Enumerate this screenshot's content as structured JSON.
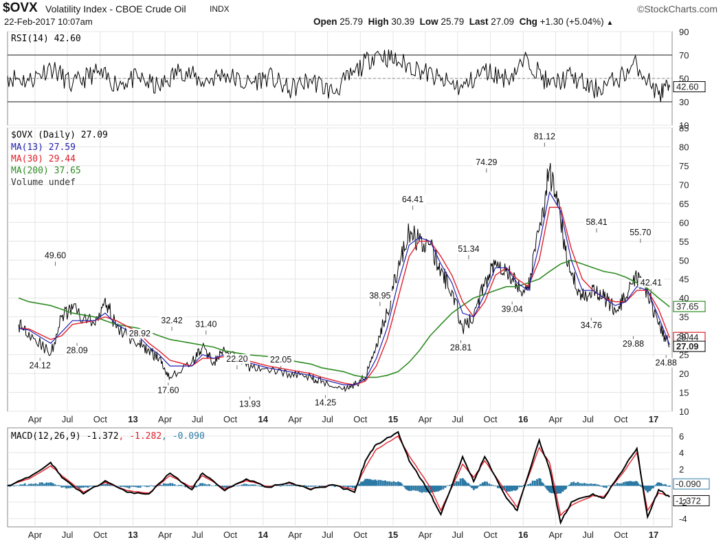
{
  "header": {
    "symbol": "$OVX",
    "name": "Volatility Index - CBOE Crude Oil",
    "exchange": "INDX",
    "source": "©StockCharts.com",
    "datetime": "22-Feb-2017 10:07am",
    "open_label": "Open",
    "open": "25.79",
    "high_label": "High",
    "high": "30.39",
    "low_label": "Low",
    "low": "25.79",
    "last_label": "Last",
    "last": "27.09",
    "chg_label": "Chg",
    "chg": "+1.30 (+5.04%)",
    "chg_arrow": "▲"
  },
  "colors": {
    "price": "#000000",
    "ma13": "#1f1fb0",
    "ma30": "#e0202a",
    "ma200": "#2e8b22",
    "macd": "#000000",
    "signal": "#e0202a",
    "hist": "#2b79a4",
    "frame": "#8a8a8a",
    "grid": "#e4e4e4"
  },
  "chart_data": [
    {
      "id": "rsi",
      "type": "line",
      "legend": "RSI(14) 42.60",
      "last_tag": "42.60",
      "ylim": [
        10,
        90
      ],
      "yticks": [
        "90",
        "70",
        "50",
        "30",
        "10"
      ],
      "ref_lines": [
        30,
        70
      ],
      "x": [
        "2012-01",
        "2012-03",
        "2012-05",
        "2012-07",
        "2012-09",
        "2012-11",
        "2013-01",
        "2013-03",
        "2013-05",
        "2013-07",
        "2013-09",
        "2013-11",
        "2014-01",
        "2014-03",
        "2014-05",
        "2014-07",
        "2014-09",
        "2014-11",
        "2015-01",
        "2015-03",
        "2015-05",
        "2015-07",
        "2015-09",
        "2015-11",
        "2016-01",
        "2016-03",
        "2016-05",
        "2016-07",
        "2016-09",
        "2016-11",
        "2017-01",
        "2017-02"
      ],
      "values": [
        52,
        48,
        60,
        44,
        55,
        46,
        50,
        42,
        58,
        47,
        54,
        45,
        52,
        40,
        49,
        38,
        55,
        72,
        64,
        58,
        48,
        42,
        57,
        50,
        66,
        44,
        52,
        40,
        48,
        62,
        36,
        42.6
      ]
    },
    {
      "id": "price",
      "type": "line",
      "legend": {
        "price": "$OVX (Daily) 27.09",
        "ma13": "MA(13) 27.59",
        "ma30": "MA(30) 29.44",
        "ma200": "MA(200) 37.65",
        "volume": "Volume undef"
      },
      "ylim": [
        10,
        85
      ],
      "yticks": [
        "85",
        "80",
        "75",
        "70",
        "65",
        "60",
        "55",
        "50",
        "45",
        "40",
        "35",
        "30",
        "25",
        "20",
        "15",
        "10"
      ],
      "x_ticks": [
        "Apr",
        "Jul",
        "Oct",
        "13",
        "Apr",
        "Jul",
        "Oct",
        "14",
        "Apr",
        "Jul",
        "Oct",
        "15",
        "Apr",
        "Jul",
        "Oct",
        "16",
        "Apr",
        "Jul",
        "Oct",
        "17"
      ],
      "x": [
        "2012-02",
        "2012-03",
        "2012-05",
        "2012-06",
        "2012-07",
        "2012-09",
        "2012-10",
        "2012-11",
        "2013-01",
        "2013-02",
        "2013-03",
        "2013-04",
        "2013-06",
        "2013-07",
        "2013-08",
        "2013-09",
        "2013-11",
        "2014-01",
        "2014-03",
        "2014-05",
        "2014-06",
        "2014-08",
        "2014-09",
        "2014-10",
        "2014-11",
        "2014-12",
        "2015-01",
        "2015-02",
        "2015-03",
        "2015-04",
        "2015-05",
        "2015-06",
        "2015-07",
        "2015-08",
        "2015-09",
        "2015-10",
        "2015-11",
        "2015-12",
        "2016-01",
        "2016-02",
        "2016-03",
        "2016-04",
        "2016-05",
        "2016-06",
        "2016-07",
        "2016-08",
        "2016-09",
        "2016-10",
        "2016-11",
        "2016-12",
        "2017-01",
        "2017-02"
      ],
      "values": [
        33,
        31,
        25,
        35,
        37,
        33,
        40,
        32,
        28,
        26,
        24,
        19,
        23,
        27,
        23,
        26,
        22,
        21,
        20,
        19,
        18,
        16,
        17,
        19,
        28,
        36,
        48,
        57,
        55,
        54,
        47,
        42,
        32,
        35,
        44,
        50,
        48,
        43,
        42,
        58,
        74,
        60,
        46,
        40,
        43,
        40,
        37,
        40,
        45,
        42,
        33,
        27.09
      ],
      "ma13": [
        32,
        31.5,
        28,
        31,
        34,
        34,
        36,
        33,
        30,
        27,
        25,
        22,
        22,
        25,
        24,
        25,
        23,
        21.5,
        20.5,
        19.5,
        18.5,
        17,
        17,
        18.5,
        24,
        32,
        44,
        54,
        56,
        55,
        49,
        44,
        36,
        35,
        41,
        48,
        48,
        44,
        42,
        54,
        68,
        63,
        50,
        42,
        42,
        40,
        38,
        39,
        43,
        42,
        35,
        27.59
      ],
      "ma30": [
        32,
        31.8,
        29,
        30,
        33,
        34,
        35,
        34,
        31,
        28,
        26,
        23.5,
        22,
        24,
        24,
        24.5,
        23.5,
        22,
        21,
        20,
        19,
        17.5,
        17,
        18,
        22,
        29,
        40,
        51,
        55,
        55,
        51,
        46,
        39,
        35,
        39,
        46,
        48,
        45,
        43,
        50,
        64,
        64,
        53,
        45,
        42,
        40,
        39,
        39,
        42,
        42,
        37,
        29.44
      ],
      "ma200": [
        40,
        39,
        38,
        37,
        36,
        35,
        34,
        33,
        32,
        31,
        30,
        29,
        28,
        27.5,
        27,
        26,
        25,
        24.5,
        23.5,
        22.5,
        21.5,
        20.5,
        19.5,
        19,
        19,
        19.5,
        20.5,
        23,
        26,
        30,
        33,
        36,
        38,
        40,
        41,
        42,
        43,
        43,
        44,
        45,
        47,
        49,
        50,
        49,
        48,
        47,
        46.5,
        45.5,
        44,
        42.5,
        40,
        37.65
      ],
      "annotations": [
        {
          "label": "49.60",
          "date": "2012-05-28",
          "value": 49.6
        },
        {
          "label": "24.12",
          "date": "2012-04-15",
          "value": 24.12
        },
        {
          "label": "28.09",
          "date": "2012-07-28",
          "value": 28.09
        },
        {
          "label": "28.92",
          "date": "2013-01-20",
          "value": 28.92
        },
        {
          "label": "32.42",
          "date": "2013-04-20",
          "value": 32.42
        },
        {
          "label": "17.60",
          "date": "2013-04-10",
          "value": 17.6
        },
        {
          "label": "31.40",
          "date": "2013-07-25",
          "value": 31.4
        },
        {
          "label": "22.20",
          "date": "2013-10-20",
          "value": 22.2
        },
        {
          "label": "13.93",
          "date": "2013-11-25",
          "value": 13.93
        },
        {
          "label": "22.05",
          "date": "2014-02-20",
          "value": 22.05
        },
        {
          "label": "14.25",
          "date": "2014-06-25",
          "value": 14.25
        },
        {
          "label": "38.95",
          "date": "2014-11-25",
          "value": 38.95
        },
        {
          "label": "64.41",
          "date": "2015-02-25",
          "value": 64.41
        },
        {
          "label": "51.34",
          "date": "2015-08-01",
          "value": 51.34
        },
        {
          "label": "28.81",
          "date": "2015-07-10",
          "value": 28.81
        },
        {
          "label": "74.29",
          "date": "2015-09-20",
          "value": 74.29
        },
        {
          "label": "39.04",
          "date": "2015-12-01",
          "value": 39.04
        },
        {
          "label": "81.12",
          "date": "2016-03-01",
          "value": 81.12
        },
        {
          "label": "58.41",
          "date": "2016-07-25",
          "value": 58.41
        },
        {
          "label": "34.76",
          "date": "2016-07-10",
          "value": 34.76
        },
        {
          "label": "55.70",
          "date": "2016-11-25",
          "value": 55.7
        },
        {
          "label": "42.41",
          "date": "2016-12-25",
          "value": 42.41
        },
        {
          "label": "29.88",
          "date": "2016-11-05",
          "value": 29.88
        },
        {
          "label": "24.88",
          "date": "2017-02-05",
          "value": 24.88
        }
      ],
      "right_tags": [
        {
          "label": "37.65",
          "value": 37.65
        },
        {
          "label": "29.44",
          "value": 29.44
        },
        {
          "label": "27.09",
          "value": 27.09
        }
      ]
    },
    {
      "id": "macd",
      "type": "line",
      "legend": {
        "name": "MACD(12,26,9)",
        "macd": "-1.372",
        "signal": "-1.282",
        "hist": "-0.090"
      },
      "ylim": [
        -5,
        7
      ],
      "yticks": [
        "6",
        "4",
        "2",
        "-2",
        "-4"
      ],
      "x_ticks": [
        "Apr",
        "Jul",
        "Oct",
        "13",
        "Apr",
        "Jul",
        "Oct",
        "14",
        "Apr",
        "Jul",
        "Oct",
        "15",
        "Apr",
        "Jul",
        "Oct",
        "16",
        "Apr",
        "Jul",
        "Oct",
        "17"
      ],
      "right_tags": [
        {
          "label": "-0.090",
          "value": -0.09
        },
        {
          "label": "-1.372",
          "value": -1.372
        }
      ],
      "x": [
        "2012-01",
        "2012-03",
        "2012-05",
        "2012-06",
        "2012-08",
        "2012-10",
        "2012-12",
        "2013-02",
        "2013-04",
        "2013-06",
        "2013-07",
        "2013-09",
        "2013-11",
        "2014-01",
        "2014-03",
        "2014-05",
        "2014-07",
        "2014-09",
        "2014-10",
        "2014-11",
        "2015-01",
        "2015-02",
        "2015-04",
        "2015-05",
        "2015-07",
        "2015-08",
        "2015-09",
        "2015-11",
        "2015-12",
        "2016-02",
        "2016-03",
        "2016-04",
        "2016-05",
        "2016-07",
        "2016-08",
        "2016-10",
        "2016-11",
        "2016-12",
        "2017-01",
        "2017-02"
      ],
      "macd": [
        0,
        1,
        2.8,
        1,
        -1,
        0.6,
        -0.8,
        -1,
        1.5,
        -0.5,
        1.5,
        -0.6,
        0.8,
        -0.2,
        0.4,
        -0.5,
        0.1,
        -0.8,
        3,
        5,
        6.5,
        3,
        -1,
        -3.5,
        3.5,
        0.5,
        3.5,
        -1.5,
        -3,
        5.5,
        2,
        -4.5,
        -2,
        -1,
        -1.5,
        2.5,
        4.5,
        -3.8,
        -0.5,
        -1.372
      ],
      "signal": [
        0,
        0.8,
        2.4,
        1.2,
        -0.8,
        0.4,
        -0.6,
        -0.9,
        1.2,
        -0.2,
        1.2,
        -0.4,
        0.6,
        -0.1,
        0.3,
        -0.4,
        0.1,
        -0.5,
        2.2,
        4.4,
        6,
        3.6,
        -0.2,
        -3,
        2.6,
        1,
        3,
        -0.8,
        -2.6,
        4.6,
        2.8,
        -3.6,
        -2.4,
        -1.2,
        -1.3,
        2,
        4,
        -3,
        -0.9,
        -1.282
      ],
      "hist": [
        0,
        0.2,
        0.4,
        -0.2,
        -0.2,
        0.2,
        -0.2,
        -0.1,
        0.3,
        -0.3,
        0.3,
        -0.2,
        0.2,
        -0.1,
        0.1,
        -0.1,
        0,
        -0.3,
        0.8,
        0.6,
        0.5,
        -0.6,
        -0.8,
        -0.5,
        0.9,
        -0.5,
        0.5,
        -0.7,
        -0.4,
        0.9,
        -0.8,
        -0.9,
        0.4,
        0.2,
        -0.2,
        0.5,
        0.5,
        -0.8,
        0.4,
        -0.09
      ]
    }
  ]
}
